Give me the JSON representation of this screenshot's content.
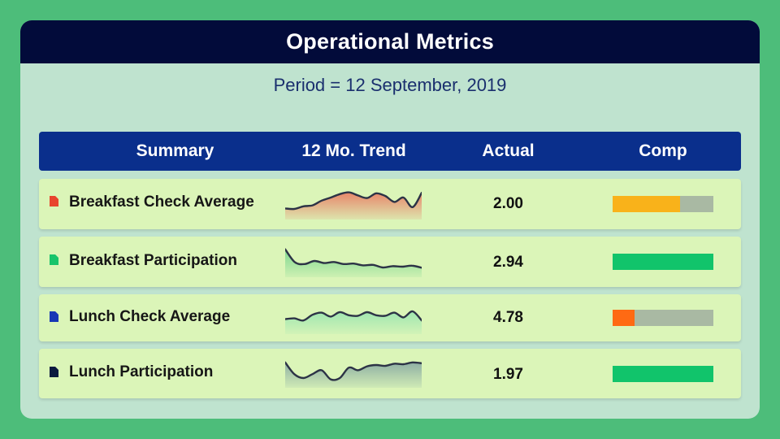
{
  "header": {
    "title": "Operational Metrics"
  },
  "period": "Period = 12 September, 2019",
  "columns": {
    "summary": "Summary",
    "trend": "12 Mo. Trend",
    "actual": "Actual",
    "comp": "Comp"
  },
  "rows": [
    {
      "label": "Breakfast Check Average",
      "icon": "document-icon",
      "icon_color": "#e8452e",
      "actual": "2.00",
      "comp_fraction": 0.67,
      "comp_color": "#f9b21a",
      "trend_color": "#e8866a",
      "trend": [
        0.3,
        0.28,
        0.38,
        0.42,
        0.6,
        0.72,
        0.85,
        0.92,
        0.8,
        0.7,
        0.88,
        0.78,
        0.55,
        0.72,
        0.35,
        0.9
      ]
    },
    {
      "label": "Breakfast Participation",
      "icon": "document-icon",
      "icon_color": "#18c46b",
      "actual": "2.94",
      "comp_fraction": 1.0,
      "comp_color": "#11c46b",
      "trend_color": "#7fd790",
      "trend": [
        0.95,
        0.45,
        0.38,
        0.5,
        0.42,
        0.46,
        0.38,
        0.4,
        0.33,
        0.35,
        0.25,
        0.3,
        0.28,
        0.32,
        0.24
      ]
    },
    {
      "label": "Lunch Check Average",
      "icon": "document-icon",
      "icon_color": "#1737b5",
      "actual": "4.78",
      "comp_fraction": 0.22,
      "comp_color": "#ff6a13",
      "trend_color": "#9fe6b0",
      "trend": [
        0.45,
        0.48,
        0.4,
        0.62,
        0.7,
        0.55,
        0.72,
        0.6,
        0.58,
        0.72,
        0.6,
        0.58,
        0.7,
        0.52,
        0.75,
        0.4
      ]
    },
    {
      "label": "Lunch Participation",
      "icon": "document-icon",
      "icon_color": "#0b1a3f",
      "actual": "1.97",
      "comp_fraction": 1.0,
      "comp_color": "#11c46b",
      "trend_color": "#8fb0a4",
      "trend": [
        0.85,
        0.4,
        0.25,
        0.4,
        0.55,
        0.2,
        0.25,
        0.65,
        0.55,
        0.7,
        0.75,
        0.72,
        0.8,
        0.78,
        0.85,
        0.82
      ]
    }
  ]
}
